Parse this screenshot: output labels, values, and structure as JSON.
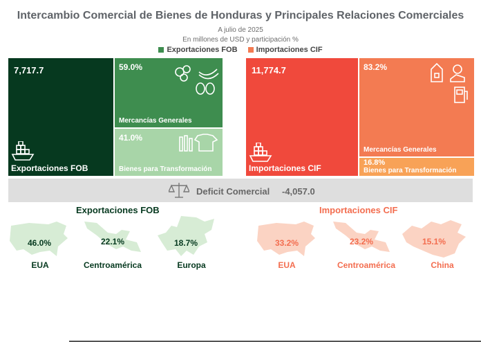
{
  "header": {
    "title": "Intercambio Comercial de Bienes de Honduras y Principales Relaciones Comerciales",
    "subtitle1": "A julio de 2025",
    "subtitle2": "En millones de USD y participación %"
  },
  "legend": {
    "exports_label": "Exportaciones FOB",
    "imports_label": "Importaciones CIF"
  },
  "colors": {
    "export_dark": "#06391f",
    "export_mid": "#3e8d4f",
    "export_light": "#a8d5a8",
    "import_dark": "#f0493c",
    "import_mid": "#f37b52",
    "import_light": "#f8a257",
    "map_green": "#d7ecd5",
    "map_orange": "#fbd3c3",
    "text_green": "#06391f",
    "text_orange": "#f36d4f"
  },
  "chart_data": [
    {
      "type": "treemap",
      "name": "Exportaciones FOB",
      "total": 7717.7,
      "total_label": "7,717.7",
      "segments": [
        {
          "name": "Mercancías Generales",
          "share": 59.0,
          "label": "59.0%",
          "icon": "food-produce-icon"
        },
        {
          "name": "Bienes para Transformación",
          "share": 41.0,
          "label": "41.0%",
          "icon": "textiles-icon"
        }
      ],
      "icon": "cargo-ship-icon"
    },
    {
      "type": "treemap",
      "name": "Importaciones CIF",
      "total": 11774.7,
      "total_label": "11,774.7",
      "segments": [
        {
          "name": "Mercancías Generales",
          "share": 83.2,
          "label": "83.2%",
          "icon": "goods-icon"
        },
        {
          "name": "Bienes para Transformación",
          "share": 16.8,
          "label": "16.8%"
        }
      ],
      "icon": "cargo-ship-icon"
    }
  ],
  "deficit": {
    "label": "Deficit Comercial",
    "value": -4057.0,
    "value_label": "-4,057.0",
    "icon": "scale-icon"
  },
  "partners": {
    "exports": {
      "title": "Exportaciones FOB",
      "items": [
        {
          "region": "EUA",
          "share": 46.0,
          "label": "46.0%",
          "icon": "usa-map-icon"
        },
        {
          "region": "Centroamérica",
          "share": 22.1,
          "label": "22.1%",
          "icon": "central-america-map-icon"
        },
        {
          "region": "Europa",
          "share": 18.7,
          "label": "18.7%",
          "icon": "europe-map-icon"
        }
      ]
    },
    "imports": {
      "title": "Importaciones CIF",
      "items": [
        {
          "region": "EUA",
          "share": 33.2,
          "label": "33.2%",
          "icon": "usa-map-icon"
        },
        {
          "region": "Centroamérica",
          "share": 23.2,
          "label": "23.2%",
          "icon": "central-america-map-icon"
        },
        {
          "region": "China",
          "share": 15.1,
          "label": "15.1%",
          "icon": "china-map-icon"
        }
      ]
    }
  }
}
